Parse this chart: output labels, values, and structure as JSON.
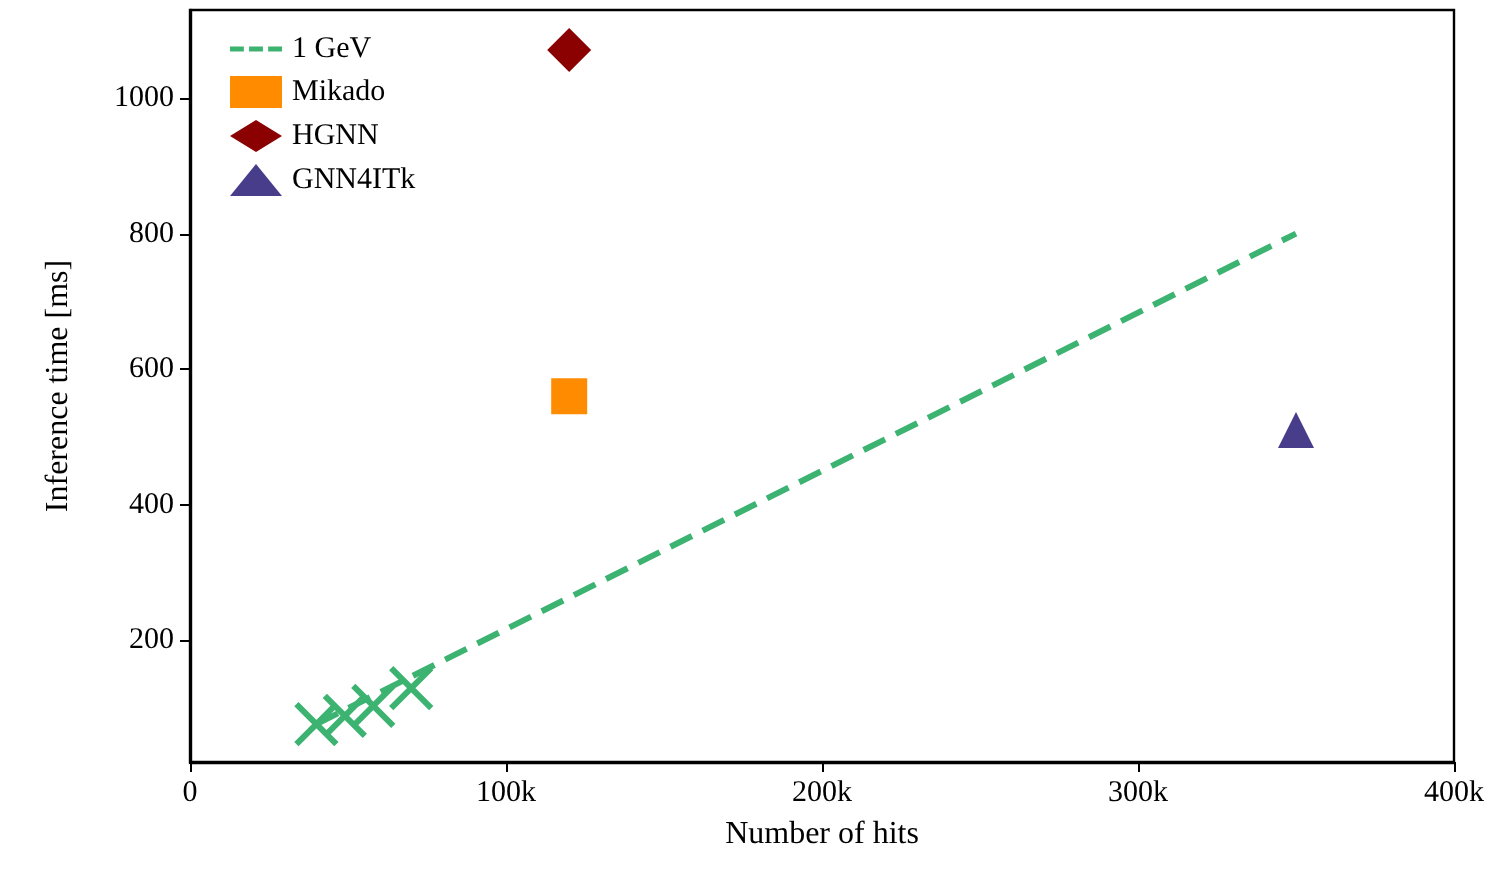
{
  "chart_data": {
    "type": "scatter",
    "xlabel": "Number of hits",
    "ylabel": "Inference time [ms]",
    "xlim": [
      0,
      400000
    ],
    "xticks": [
      0,
      {
        "value": 100000,
        "label": "100k"
      },
      {
        "value": 200000,
        "label": "200k"
      },
      {
        "value": 300000,
        "label": "300k"
      },
      {
        "value": 400000,
        "label": "400k"
      }
    ],
    "ylim": [
      20,
      1130
    ],
    "yticks": [
      200,
      400,
      600,
      800,
      1000
    ],
    "grid": false,
    "legend": "top left",
    "series": [
      {
        "name": "1 GeV",
        "type": "line",
        "line_style": "dashed",
        "marker": "none",
        "color": "#3cb371",
        "x": [
          40000,
          350000
        ],
        "values": [
          76,
          800
        ]
      },
      {
        "marker": "cross",
        "color": "#3cb371",
        "x": [
          40000,
          49000,
          58000,
          70000
        ],
        "values": [
          76,
          88,
          103,
          129
        ]
      },
      {
        "name": "Mikado",
        "marker": "square",
        "color": "#ff8c00",
        "x": [
          120000
        ],
        "values": [
          560
        ]
      },
      {
        "name": "HGNN",
        "marker": "diamond",
        "color": "#8b0000",
        "x": [
          120000
        ],
        "values": [
          1071
        ]
      },
      {
        "name": "GNN4ITk",
        "marker": "triangle",
        "color": "#483d8b",
        "x": [
          350000
        ],
        "values": [
          510
        ]
      }
    ]
  }
}
